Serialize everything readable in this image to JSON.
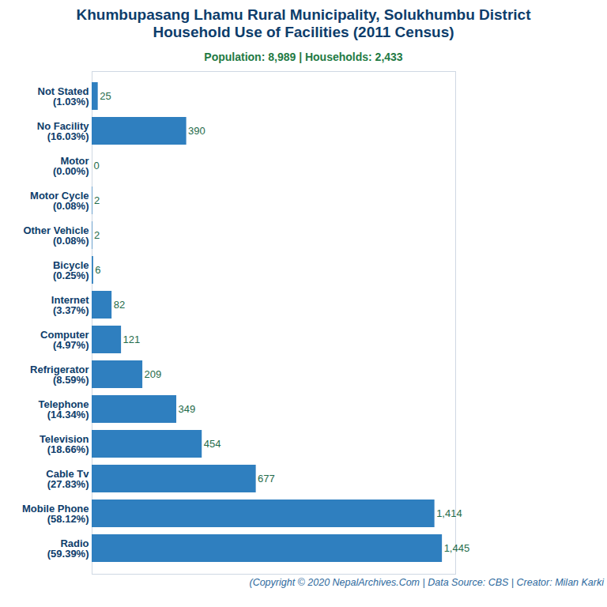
{
  "chart_data": {
    "type": "bar",
    "title": "Khumbupasang Lhamu Rural Municipality, Solukhumbu District\nHousehold Use of Facilities (2011 Census)",
    "subtitle": "Population: 8,989 | Households: 2,433",
    "caption": "(Copyright © 2020 NepalArchives.Com | Data Source: CBS | Creator: Milan Karki",
    "orientation": "horizontal",
    "categories": [
      "Not Stated\n(1.03%)",
      "No Facility\n(16.03%)",
      "Motor\n(0.00%)",
      "Motor Cycle\n(0.08%)",
      "Other Vehicle\n(0.08%)",
      "Bicycle\n(0.25%)",
      "Internet\n(3.37%)",
      "Computer\n(4.97%)",
      "Refrigerator\n(8.59%)",
      "Telephone\n(14.34%)",
      "Television\n(18.66%)",
      "Cable Tv\n(27.83%)",
      "Mobile Phone\n(58.12%)",
      "Radio\n(59.39%)"
    ],
    "values": [
      25,
      390,
      0,
      2,
      2,
      6,
      82,
      121,
      209,
      349,
      454,
      677,
      1414,
      1445
    ],
    "value_labels": [
      "25",
      "390",
      "0",
      "2",
      "2",
      "6",
      "82",
      "121",
      "209",
      "349",
      "454",
      "677",
      "1,414",
      "1,445"
    ],
    "color": "#2f7fbf",
    "xlim": [
      0,
      1500
    ],
    "data_labels": true,
    "tick_labels": "y",
    "grid": false
  }
}
